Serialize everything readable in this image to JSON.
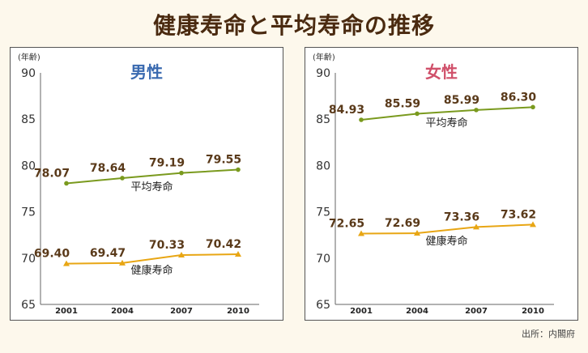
{
  "title": "健康寿命と平均寿命の推移",
  "source": "出所：内閣府",
  "colors": {
    "heikin": "#7a9a1e",
    "kenko": "#e8a614",
    "male_title": "#3a6ab0",
    "female_title": "#d0506a"
  },
  "chart_data": [
    {
      "type": "line",
      "title": "男性",
      "ylabel": "(年齢)",
      "categories": [
        "2001",
        "2004",
        "2007",
        "2010"
      ],
      "ylim": [
        65,
        90
      ],
      "yticks": [
        65,
        70,
        75,
        80,
        85,
        90
      ],
      "series": [
        {
          "name": "平均寿命",
          "values": [
            78.07,
            78.64,
            79.19,
            79.55
          ],
          "labels": [
            "78.07",
            "78.64",
            "79.19",
            "79.55"
          ]
        },
        {
          "name": "健康寿命",
          "values": [
            69.4,
            69.47,
            70.33,
            70.42
          ],
          "labels": [
            "69.40",
            "69.47",
            "70.33",
            "70.42"
          ]
        }
      ]
    },
    {
      "type": "line",
      "title": "女性",
      "ylabel": "(年齢)",
      "categories": [
        "2001",
        "2004",
        "2007",
        "2010"
      ],
      "ylim": [
        65,
        90
      ],
      "yticks": [
        65,
        70,
        75,
        80,
        85,
        90
      ],
      "series": [
        {
          "name": "平均寿命",
          "values": [
            84.93,
            85.59,
            85.99,
            86.3
          ],
          "labels": [
            "84.93",
            "85.59",
            "85.99",
            "86.30"
          ]
        },
        {
          "name": "健康寿命",
          "values": [
            72.65,
            72.69,
            73.36,
            73.62
          ],
          "labels": [
            "72.65",
            "72.69",
            "73.36",
            "73.62"
          ]
        }
      ]
    }
  ]
}
